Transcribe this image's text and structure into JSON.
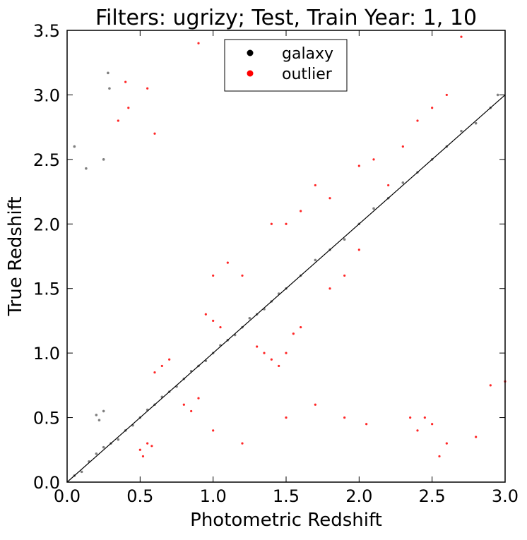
{
  "chart_data": {
    "type": "scatter",
    "title": "Filters: ugrizy; Test, Train Year: 1, 10",
    "xlabel": "Photometric Redshift",
    "ylabel": "True Redshift",
    "xlim": [
      0.0,
      3.0
    ],
    "ylim": [
      0.0,
      3.5
    ],
    "x_ticks": [
      "0.0",
      "0.5",
      "1.0",
      "1.5",
      "2.0",
      "2.5",
      "3.0"
    ],
    "y_ticks": [
      "0.0",
      "0.5",
      "1.0",
      "1.5",
      "2.0",
      "2.5",
      "3.0",
      "3.5"
    ],
    "grid": false,
    "legend_position": "top-center",
    "diagonal_line": {
      "from": [
        0,
        0
      ],
      "to": [
        3.0,
        3.0
      ],
      "color": "#000000"
    },
    "series": [
      {
        "name": "galaxy",
        "color": "#000000",
        "points": [
          [
            0.05,
            0.05
          ],
          [
            0.1,
            0.08
          ],
          [
            0.15,
            0.16
          ],
          [
            0.2,
            0.22
          ],
          [
            0.25,
            0.27
          ],
          [
            0.3,
            0.3
          ],
          [
            0.35,
            0.33
          ],
          [
            0.4,
            0.4
          ],
          [
            0.45,
            0.44
          ],
          [
            0.5,
            0.5
          ],
          [
            0.55,
            0.56
          ],
          [
            0.6,
            0.6
          ],
          [
            0.65,
            0.66
          ],
          [
            0.7,
            0.7
          ],
          [
            0.75,
            0.74
          ],
          [
            0.8,
            0.8
          ],
          [
            0.85,
            0.86
          ],
          [
            0.9,
            0.9
          ],
          [
            0.95,
            0.94
          ],
          [
            1.0,
            1.0
          ],
          [
            1.05,
            1.06
          ],
          [
            1.1,
            1.1
          ],
          [
            1.15,
            1.14
          ],
          [
            1.2,
            1.2
          ],
          [
            1.25,
            1.27
          ],
          [
            1.3,
            1.3
          ],
          [
            1.35,
            1.34
          ],
          [
            1.4,
            1.4
          ],
          [
            1.45,
            1.46
          ],
          [
            1.5,
            1.5
          ],
          [
            1.6,
            1.6
          ],
          [
            1.7,
            1.72
          ],
          [
            1.8,
            1.8
          ],
          [
            1.9,
            1.88
          ],
          [
            2.0,
            2.0
          ],
          [
            2.1,
            2.12
          ],
          [
            2.2,
            2.2
          ],
          [
            2.3,
            2.32
          ],
          [
            2.4,
            2.4
          ],
          [
            2.5,
            2.5
          ],
          [
            2.6,
            2.6
          ],
          [
            2.7,
            2.72
          ],
          [
            2.8,
            2.78
          ],
          [
            2.9,
            2.9
          ],
          [
            2.95,
            3.0
          ],
          [
            0.2,
            0.52
          ],
          [
            0.25,
            0.55
          ],
          [
            0.22,
            0.48
          ],
          [
            0.13,
            2.43
          ],
          [
            0.28,
            3.17
          ],
          [
            0.29,
            3.05
          ],
          [
            0.05,
            2.6
          ],
          [
            0.25,
            2.5
          ]
        ]
      },
      {
        "name": "outlier",
        "color": "#ff0000",
        "points": [
          [
            0.5,
            0.25
          ],
          [
            0.55,
            0.3
          ],
          [
            0.52,
            0.2
          ],
          [
            0.58,
            0.28
          ],
          [
            0.6,
            0.85
          ],
          [
            0.65,
            0.9
          ],
          [
            0.7,
            0.95
          ],
          [
            0.8,
            0.6
          ],
          [
            0.85,
            0.55
          ],
          [
            0.9,
            0.65
          ],
          [
            0.95,
            1.3
          ],
          [
            1.0,
            1.25
          ],
          [
            1.05,
            1.2
          ],
          [
            1.0,
            1.6
          ],
          [
            1.1,
            1.7
          ],
          [
            1.2,
            1.6
          ],
          [
            1.3,
            1.05
          ],
          [
            1.35,
            1.0
          ],
          [
            1.4,
            0.95
          ],
          [
            1.5,
            1.0
          ],
          [
            1.45,
            0.9
          ],
          [
            1.6,
            1.2
          ],
          [
            1.55,
            1.15
          ],
          [
            1.8,
            1.5
          ],
          [
            1.9,
            1.6
          ],
          [
            2.0,
            1.8
          ],
          [
            1.4,
            2.0
          ],
          [
            1.5,
            2.0
          ],
          [
            1.6,
            2.1
          ],
          [
            1.7,
            2.3
          ],
          [
            1.8,
            2.2
          ],
          [
            2.0,
            2.45
          ],
          [
            2.1,
            2.5
          ],
          [
            2.2,
            2.3
          ],
          [
            2.3,
            2.6
          ],
          [
            2.4,
            2.8
          ],
          [
            2.5,
            2.9
          ],
          [
            2.6,
            3.0
          ],
          [
            2.4,
            0.4
          ],
          [
            2.5,
            0.45
          ],
          [
            2.6,
            0.3
          ],
          [
            2.8,
            0.35
          ],
          [
            2.35,
            0.5
          ],
          [
            2.45,
            0.5
          ],
          [
            0.35,
            2.8
          ],
          [
            0.4,
            3.1
          ],
          [
            0.55,
            3.05
          ],
          [
            0.6,
            2.7
          ],
          [
            0.42,
            2.9
          ],
          [
            0.9,
            3.4
          ],
          [
            1.0,
            0.4
          ],
          [
            1.9,
            0.5
          ],
          [
            2.05,
            0.45
          ],
          [
            2.9,
            0.75
          ],
          [
            3.0,
            0.78
          ],
          [
            1.5,
            0.5
          ],
          [
            1.2,
            0.3
          ],
          [
            1.7,
            0.6
          ],
          [
            2.7,
            3.45
          ],
          [
            2.55,
            0.2
          ]
        ]
      }
    ]
  }
}
